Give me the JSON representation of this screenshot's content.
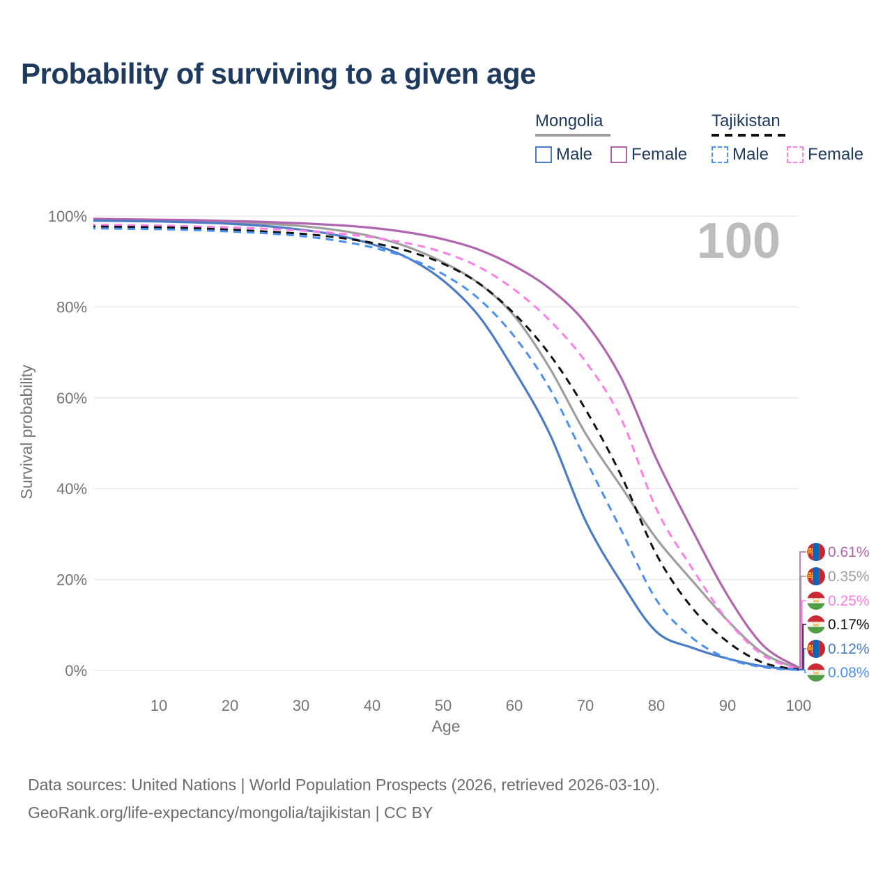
{
  "title": "Probability of surviving to a given age",
  "watermark": "100",
  "legend": {
    "groups": [
      {
        "name": "Mongolia",
        "line_style": "solid",
        "line_color": "#9e9e9e",
        "items": [
          {
            "label": "Male",
            "color": "#4b7bc4",
            "dashed": false
          },
          {
            "label": "Female",
            "color": "#b165ae",
            "dashed": false
          }
        ]
      },
      {
        "name": "Tajikistan",
        "line_style": "dashed",
        "line_color": "#111111",
        "items": [
          {
            "label": "Male",
            "color": "#4a90f0",
            "dashed": true
          },
          {
            "label": "Female",
            "color": "#ff7de6",
            "dashed": true
          }
        ]
      }
    ]
  },
  "chart_data": {
    "type": "line",
    "title": "Probability of surviving to a given age",
    "xlabel": "Age",
    "ylabel": "Survival probability",
    "xlim": [
      0,
      100
    ],
    "ylim": [
      0,
      100
    ],
    "grid": "horizontal",
    "x_ticks": [
      10,
      20,
      30,
      40,
      50,
      60,
      70,
      80,
      90,
      100
    ],
    "y_tick_labels": [
      "0%",
      "20%",
      "40%",
      "60%",
      "80%",
      "100%"
    ],
    "ages": [
      0,
      5,
      10,
      15,
      20,
      25,
      30,
      35,
      40,
      45,
      50,
      55,
      60,
      65,
      70,
      75,
      80,
      85,
      90,
      95,
      100
    ],
    "series": [
      {
        "name": "Mongolia Female",
        "country": "Mongolia",
        "sex": "Female",
        "color": "#b165ae",
        "dashed": false,
        "flag": "mongolia",
        "end_label": "0.61%",
        "values": [
          99.4,
          99.3,
          99.2,
          99.1,
          98.9,
          98.7,
          98.4,
          98.0,
          97.4,
          96.4,
          94.9,
          92.6,
          89.0,
          84.0,
          76.5,
          64.5,
          46.5,
          31.0,
          16.5,
          5.5,
          0.61
        ]
      },
      {
        "name": "Mongolia Both sexes",
        "country": "Mongolia",
        "sex": "All",
        "color": "#9e9e9e",
        "dashed": false,
        "flag": "mongolia",
        "end_label": "0.35%",
        "values": [
          99.2,
          99.1,
          99.0,
          98.8,
          98.6,
          98.3,
          97.8,
          96.9,
          95.5,
          93.2,
          89.8,
          85.2,
          78.0,
          66.5,
          52.2,
          40.5,
          29.0,
          19.8,
          11.0,
          3.8,
          0.35
        ]
      },
      {
        "name": "Tajikistan Female",
        "country": "Tajikistan",
        "sex": "Female",
        "color": "#ff7de6",
        "dashed": true,
        "flag": "tajikistan",
        "end_label": "0.25%",
        "values": [
          98.1,
          98.0,
          97.9,
          97.7,
          97.5,
          97.2,
          96.8,
          96.2,
          95.3,
          94.0,
          92.0,
          88.8,
          83.8,
          77.0,
          68.0,
          55.5,
          35.5,
          22.5,
          11.0,
          3.3,
          0.25
        ]
      },
      {
        "name": "Tajikistan Both sexes",
        "country": "Tajikistan",
        "sex": "All",
        "color": "#111111",
        "dashed": true,
        "flag": "tajikistan",
        "end_label": "0.17%",
        "values": [
          97.7,
          97.6,
          97.5,
          97.3,
          97.0,
          96.6,
          96.1,
          95.3,
          94.1,
          92.3,
          89.5,
          85.2,
          78.5,
          69.5,
          57.5,
          43.0,
          25.5,
          13.8,
          6.3,
          1.7,
          0.17
        ]
      },
      {
        "name": "Mongolia Male",
        "country": "Mongolia",
        "sex": "Male",
        "color": "#4b7bc4",
        "dashed": false,
        "flag": "mongolia",
        "end_label": "0.12%",
        "values": [
          99.0,
          98.9,
          98.8,
          98.6,
          98.3,
          97.8,
          97.0,
          95.8,
          93.8,
          90.8,
          85.8,
          78.0,
          66.0,
          52.0,
          33.0,
          19.5,
          8.5,
          5.0,
          2.6,
          0.9,
          0.12
        ]
      },
      {
        "name": "Tajikistan Male",
        "country": "Tajikistan",
        "sex": "Male",
        "color": "#4a90f0",
        "dashed": true,
        "flag": "tajikistan",
        "end_label": "0.08%",
        "values": [
          97.3,
          97.2,
          97.1,
          96.9,
          96.6,
          96.2,
          95.6,
          94.6,
          93.1,
          90.8,
          87.2,
          81.8,
          73.5,
          62.0,
          46.5,
          31.0,
          15.5,
          7.2,
          2.6,
          0.7,
          0.08
        ]
      }
    ]
  },
  "flag_colors": {
    "mongolia": {
      "red": "#c4272f",
      "blue": "#0a66b7",
      "yellow": "#f9cf02"
    },
    "tajikistan": {
      "red": "#cc2936",
      "white": "#f4f4f4",
      "green": "#4f9d45",
      "crown": "#e9c25c"
    }
  },
  "footer": {
    "line1": "Data sources: United Nations | World Population Prospects (2026, retrieved 2026-03-10).",
    "line2": "GeoRank.org/life-expectancy/mongolia/tajikistan | CC BY"
  }
}
